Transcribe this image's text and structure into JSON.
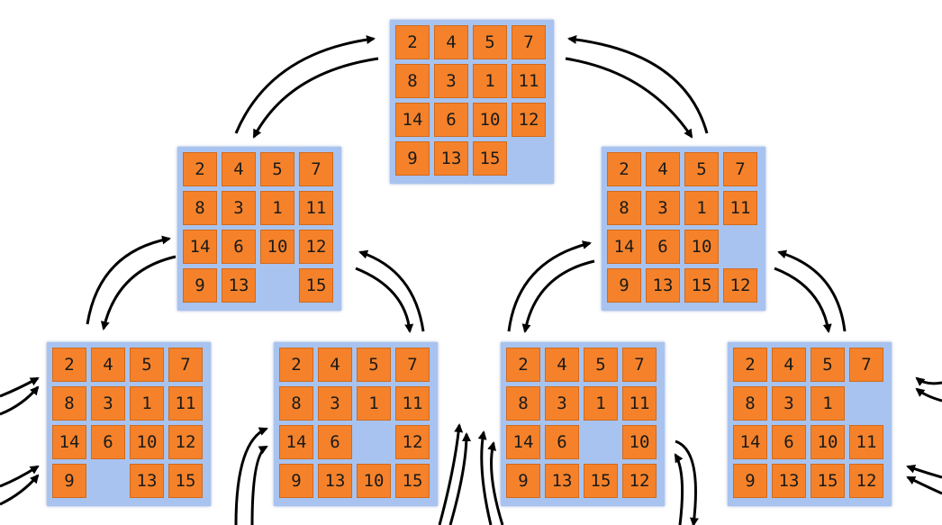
{
  "boards": [
    {
      "tiles": [
        "2",
        "4",
        "5",
        "7",
        "8",
        "3",
        "1",
        "11",
        "14",
        "6",
        "10",
        "12",
        "9",
        "13",
        "15",
        ""
      ]
    },
    {
      "tiles": [
        "2",
        "4",
        "5",
        "7",
        "8",
        "3",
        "1",
        "11",
        "14",
        "6",
        "10",
        "12",
        "9",
        "13",
        "",
        "15"
      ]
    },
    {
      "tiles": [
        "2",
        "4",
        "5",
        "7",
        "8",
        "3",
        "1",
        "11",
        "14",
        "6",
        "10",
        "",
        "9",
        "13",
        "15",
        "12"
      ]
    },
    {
      "tiles": [
        "2",
        "4",
        "5",
        "7",
        "8",
        "3",
        "1",
        "11",
        "14",
        "6",
        "10",
        "12",
        "9",
        "",
        "13",
        "15"
      ]
    },
    {
      "tiles": [
        "2",
        "4",
        "5",
        "7",
        "8",
        "3",
        "1",
        "11",
        "14",
        "6",
        "",
        "12",
        "9",
        "13",
        "10",
        "15"
      ]
    },
    {
      "tiles": [
        "2",
        "4",
        "5",
        "7",
        "8",
        "3",
        "1",
        "11",
        "14",
        "6",
        "",
        "10",
        "9",
        "13",
        "15",
        "12"
      ]
    },
    {
      "tiles": [
        "2",
        "4",
        "5",
        "7",
        "8",
        "3",
        "1",
        "",
        "14",
        "6",
        "10",
        "11",
        "9",
        "13",
        "15",
        "12"
      ]
    }
  ],
  "colors": {
    "tile": "#f5822a",
    "board": "#a8c3ef",
    "arrow": "#000000"
  }
}
